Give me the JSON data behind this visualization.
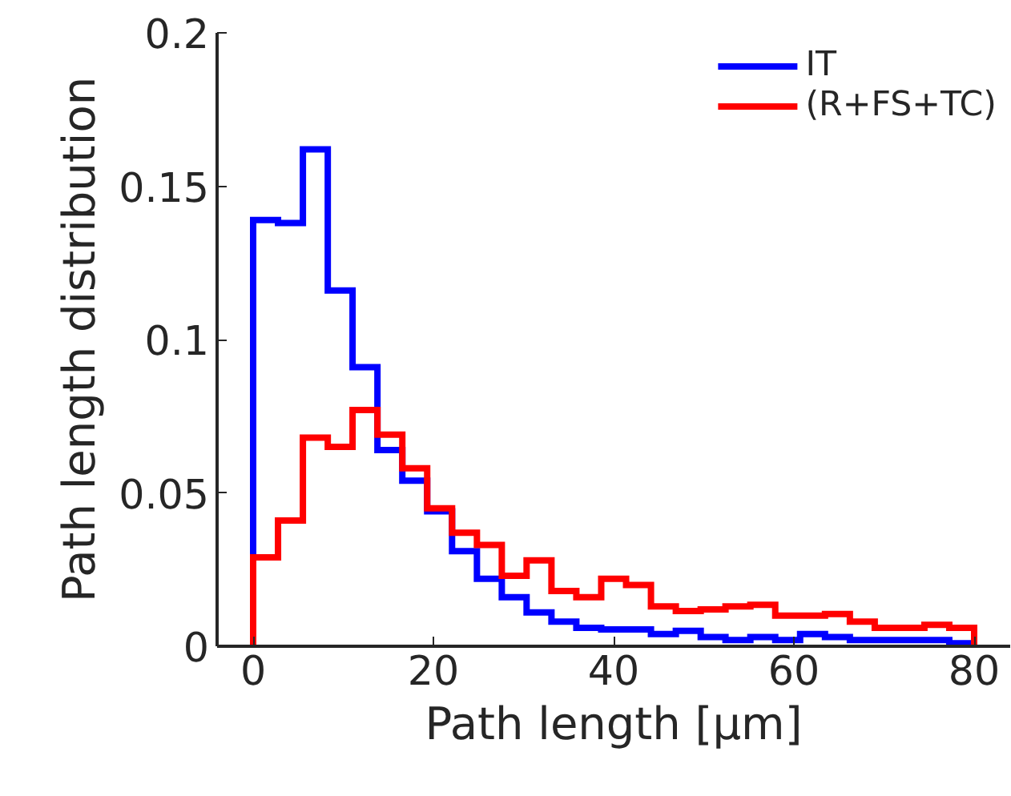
{
  "chart_data": {
    "type": "histogram",
    "xlabel": "Path length [μm]",
    "ylabel": "Path length distribution",
    "bins": [
      0,
      2.76,
      5.52,
      8.28,
      11.03,
      13.79,
      16.55,
      19.31,
      22.07,
      24.83,
      27.59,
      30.34,
      33.1,
      35.86,
      38.62,
      41.38,
      44.14,
      46.9,
      49.66,
      52.41,
      55.17,
      57.93,
      60.69,
      63.45,
      66.21,
      68.97,
      71.72,
      74.48,
      77.24,
      80
    ],
    "series": [
      {
        "name": "IT",
        "color": "#0000ff",
        "values": [
          0.139,
          0.138,
          0.162,
          0.116,
          0.091,
          0.064,
          0.054,
          0.044,
          0.031,
          0.022,
          0.016,
          0.011,
          0.008,
          0.006,
          0.0055,
          0.0055,
          0.004,
          0.005,
          0.003,
          0.002,
          0.003,
          0.002,
          0.004,
          0.003,
          0.002,
          0.002,
          0.002,
          0.002,
          0.001
        ]
      },
      {
        "name": "(R+FS+TC)",
        "color": "#ff0000",
        "values": [
          0.029,
          0.041,
          0.068,
          0.065,
          0.077,
          0.069,
          0.058,
          0.045,
          0.037,
          0.033,
          0.023,
          0.028,
          0.018,
          0.016,
          0.022,
          0.02,
          0.013,
          0.0115,
          0.012,
          0.013,
          0.0135,
          0.01,
          0.01,
          0.0105,
          0.008,
          0.006,
          0.006,
          0.007,
          0.006
        ]
      }
    ],
    "xlim": [
      -4,
      84
    ],
    "ylim": [
      0,
      0.2
    ],
    "xticks": [
      0,
      20,
      40,
      60,
      80
    ],
    "yticks": [
      0,
      0.05,
      0.1,
      0.15,
      0.2
    ],
    "grid": false,
    "legend": "top right"
  }
}
